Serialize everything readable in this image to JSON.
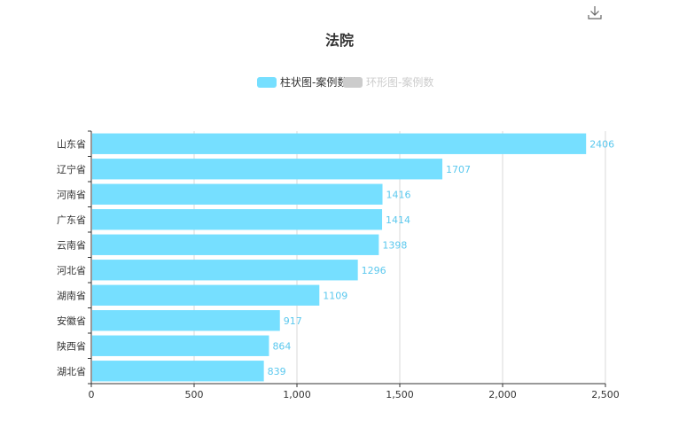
{
  "toolbar": {
    "download_icon": "download-icon"
  },
  "chart_data": {
    "type": "bar",
    "orientation": "horizontal",
    "title": "法院",
    "legend": {
      "placement": "top-center",
      "items": [
        {
          "label": "柱状图-案例数",
          "color": "#76DFFF",
          "active": true
        },
        {
          "label": "环形图-案例数",
          "color": "#CCCCCC",
          "active": false
        }
      ]
    },
    "categories": [
      "山东省",
      "辽宁省",
      "河南省",
      "广东省",
      "云南省",
      "河北省",
      "湖南省",
      "安徽省",
      "陕西省",
      "湖北省"
    ],
    "series": [
      {
        "name": "柱状图-案例数",
        "values": [
          2406,
          1707,
          1416,
          1414,
          1398,
          1296,
          1109,
          917,
          864,
          839
        ]
      }
    ],
    "xlim": [
      0,
      2500
    ],
    "xticks": [
      0,
      500,
      1000,
      1500,
      2000,
      2500
    ],
    "xtick_labels": [
      "0",
      "500",
      "1,000",
      "1,500",
      "2,000",
      "2,500"
    ],
    "grid": true,
    "data_labels": true,
    "colors": {
      "bar": "#76DFFF",
      "label": "#5BC8EE",
      "axis": "#333333",
      "grid": "#D9D9D9"
    }
  }
}
